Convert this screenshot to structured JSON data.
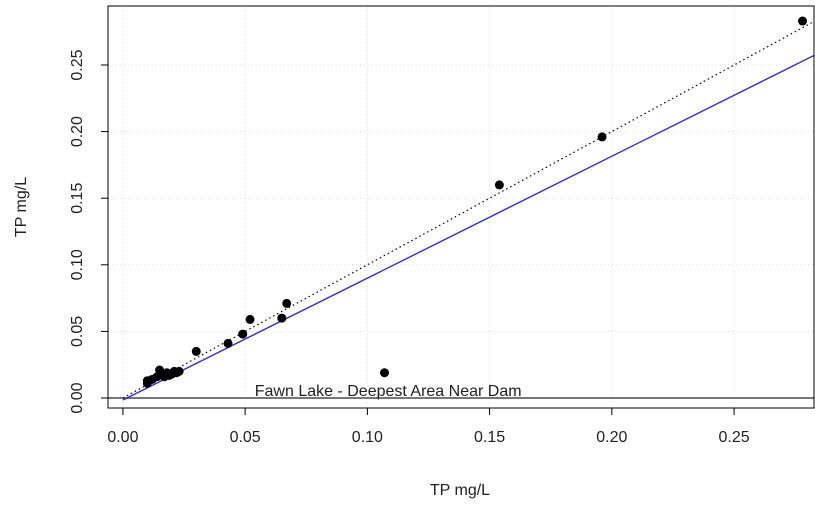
{
  "chart_data": {
    "type": "scatter",
    "xlabel": "TP mg/L",
    "ylabel": "TP mg/L",
    "annotation": "Fawn Lake - Deepest Area Near Dam",
    "xlim": [
      -0.0061,
      0.2827
    ],
    "ylim": [
      -0.0075,
      0.2943
    ],
    "xticks": [
      {
        "value": 0,
        "label": "0.00"
      },
      {
        "value": 0.05,
        "label": "0.05"
      },
      {
        "value": 0.1,
        "label": "0.10"
      },
      {
        "value": 0.15,
        "label": "0.15"
      },
      {
        "value": 0.2,
        "label": "0.20"
      },
      {
        "value": 0.25,
        "label": "0.25"
      }
    ],
    "yticks": [
      {
        "value": 0,
        "label": "0.00"
      },
      {
        "value": 0.05,
        "label": "0.05"
      },
      {
        "value": 0.1,
        "label": "0.10"
      },
      {
        "value": 0.15,
        "label": "0.15"
      },
      {
        "value": 0.2,
        "label": "0.20"
      },
      {
        "value": 0.25,
        "label": "0.25"
      }
    ],
    "grid": true,
    "hline": 0,
    "series": [
      {
        "color": "#000000",
        "x": [
          0.278,
          0.196,
          0.154,
          0.107,
          0.067,
          0.065,
          0.052,
          0.049,
          0.043,
          0.03,
          0.01,
          0.01,
          0.012,
          0.014,
          0.015,
          0.016,
          0.017,
          0.018,
          0.019,
          0.02,
          0.021,
          0.022,
          0.023
        ],
        "values": [
          0.283,
          0.196,
          0.16,
          0.019,
          0.071,
          0.06,
          0.059,
          0.048,
          0.041,
          0.035,
          0.011,
          0.013,
          0.014,
          0.016,
          0.021,
          0.018,
          0.016,
          0.019,
          0.017,
          0.018,
          0.02,
          0.019,
          0.02
        ]
      }
    ],
    "lines": [
      {
        "slope": 1,
        "intercept": 0,
        "color": "#000000",
        "dotted": true
      },
      {
        "slope": 0.915,
        "intercept": -0.0015,
        "color": "#2020ff",
        "dotted": false
      }
    ]
  }
}
